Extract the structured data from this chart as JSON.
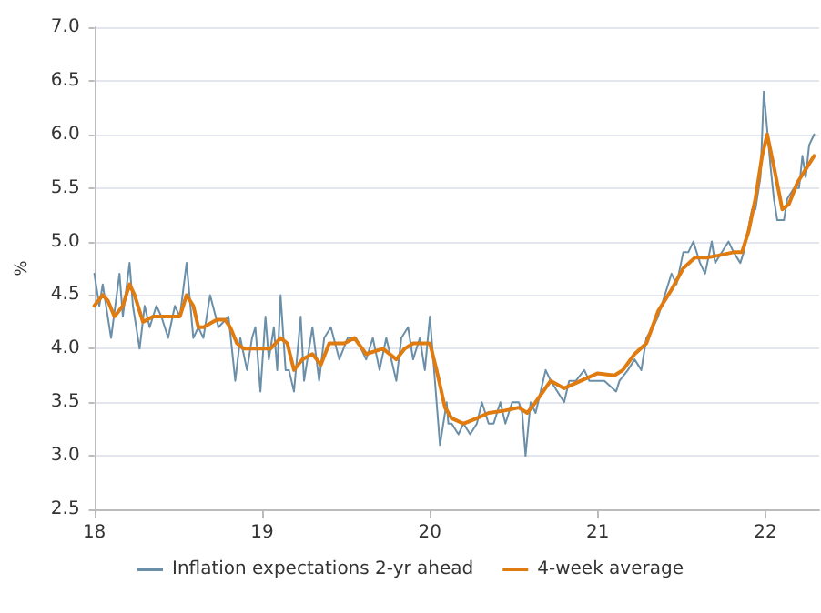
{
  "chart_data": {
    "type": "line",
    "ylabel": "%",
    "xlim": [
      18,
      22.32
    ],
    "xticks": [
      18,
      19,
      20,
      21,
      22
    ],
    "ylim": [
      2.5,
      7.0
    ],
    "yticks": [
      {
        "value": 2.5,
        "label": "2.5"
      },
      {
        "value": 3,
        "label": "3.0"
      },
      {
        "value": 3.5,
        "label": "3.5"
      },
      {
        "value": 4,
        "label": "4.0"
      },
      {
        "value": 4.5,
        "label": "4.5"
      },
      {
        "value": 5,
        "label": "5.0"
      },
      {
        "value": 5.5,
        "label": "5.5"
      },
      {
        "value": 6,
        "label": "6.0"
      },
      {
        "value": 6.5,
        "label": "6.5"
      },
      {
        "value": 7,
        "label": "7.0"
      }
    ],
    "grid": "y",
    "legend": "bottom",
    "marker": "none",
    "line_style": "solid",
    "series": [
      {
        "name": "Inflation expectations 2-yr ahead",
        "color": "#6b8fa8",
        "x": [
          18.0,
          18.03,
          18.05,
          18.1,
          18.15,
          18.17,
          18.21,
          18.23,
          18.27,
          18.3,
          18.33,
          18.37,
          18.4,
          18.44,
          18.48,
          18.51,
          18.55,
          18.59,
          18.62,
          18.65,
          18.69,
          18.74,
          18.8,
          18.84,
          18.87,
          18.91,
          18.94,
          18.96,
          18.99,
          19.02,
          19.04,
          19.07,
          19.09,
          19.11,
          19.14,
          19.16,
          19.19,
          19.23,
          19.25,
          19.28,
          19.3,
          19.34,
          19.37,
          19.41,
          19.46,
          19.51,
          19.56,
          19.62,
          19.66,
          19.7,
          19.74,
          19.8,
          19.83,
          19.87,
          19.9,
          19.94,
          19.97,
          20.0,
          20.06,
          20.1,
          20.11,
          20.13,
          20.17,
          20.2,
          20.24,
          20.28,
          20.31,
          20.35,
          20.38,
          20.42,
          20.45,
          20.49,
          20.53,
          20.55,
          20.57,
          20.6,
          20.63,
          20.66,
          20.69,
          20.72,
          20.76,
          20.8,
          20.83,
          20.87,
          20.92,
          20.95,
          21.0,
          21.04,
          21.11,
          21.13,
          21.18,
          21.22,
          21.26,
          21.29,
          21.33,
          21.36,
          21.4,
          21.44,
          21.47,
          21.51,
          21.54,
          21.57,
          21.61,
          21.64,
          21.68,
          21.7,
          21.74,
          21.78,
          21.81,
          21.85,
          21.87,
          21.92,
          21.94,
          21.97,
          21.99,
          22.03,
          22.05,
          22.07,
          22.11,
          22.13,
          22.17,
          22.2,
          22.22,
          22.24,
          22.26,
          22.29
        ],
        "values": [
          4.7,
          4.4,
          4.6,
          4.1,
          4.7,
          4.3,
          4.8,
          4.4,
          4.0,
          4.4,
          4.2,
          4.4,
          4.3,
          4.1,
          4.4,
          4.3,
          4.8,
          4.1,
          4.2,
          4.1,
          4.5,
          4.2,
          4.3,
          3.7,
          4.1,
          3.8,
          4.1,
          4.2,
          3.6,
          4.3,
          3.9,
          4.2,
          3.8,
          4.5,
          3.8,
          3.8,
          3.6,
          4.3,
          3.7,
          4.0,
          4.2,
          3.7,
          4.1,
          4.2,
          3.9,
          4.1,
          4.1,
          3.9,
          4.1,
          3.8,
          4.1,
          3.7,
          4.1,
          4.2,
          3.9,
          4.1,
          3.8,
          4.3,
          3.1,
          3.5,
          3.3,
          3.3,
          3.2,
          3.3,
          3.2,
          3.3,
          3.5,
          3.3,
          3.3,
          3.5,
          3.3,
          3.5,
          3.5,
          3.4,
          3.0,
          3.5,
          3.4,
          3.6,
          3.8,
          3.7,
          3.6,
          3.5,
          3.7,
          3.7,
          3.8,
          3.7,
          3.7,
          3.7,
          3.6,
          3.7,
          3.8,
          3.9,
          3.8,
          4.1,
          4.2,
          4.3,
          4.5,
          4.7,
          4.6,
          4.9,
          4.9,
          5.0,
          4.8,
          4.7,
          5.0,
          4.8,
          4.9,
          5.0,
          4.9,
          4.8,
          4.9,
          5.3,
          5.3,
          5.6,
          6.4,
          5.7,
          5.4,
          5.2,
          5.2,
          5.4,
          5.5,
          5.5,
          5.8,
          5.6,
          5.9,
          6.0
        ]
      },
      {
        "name": "4-week average",
        "color": "#e07b10",
        "x": [
          18.0,
          18.05,
          18.08,
          18.12,
          18.17,
          18.21,
          18.24,
          18.29,
          18.35,
          18.44,
          18.51,
          18.55,
          18.59,
          18.62,
          18.65,
          18.73,
          18.78,
          18.81,
          18.85,
          18.89,
          18.94,
          19.05,
          19.11,
          19.15,
          19.19,
          19.24,
          19.3,
          19.35,
          19.4,
          19.49,
          19.55,
          19.62,
          19.72,
          19.8,
          19.85,
          19.9,
          19.97,
          20.0,
          20.04,
          20.09,
          20.13,
          20.2,
          20.28,
          20.35,
          20.44,
          20.53,
          20.58,
          20.63,
          20.72,
          20.8,
          20.9,
          21.0,
          21.1,
          21.15,
          21.22,
          21.29,
          21.36,
          21.44,
          21.51,
          21.58,
          21.65,
          21.72,
          21.81,
          21.86,
          21.9,
          21.94,
          21.98,
          22.01,
          22.05,
          22.1,
          22.14,
          22.19,
          22.25,
          22.29
        ],
        "values": [
          4.4,
          4.5,
          4.45,
          4.3,
          4.4,
          4.6,
          4.5,
          4.25,
          4.3,
          4.3,
          4.3,
          4.5,
          4.4,
          4.2,
          4.2,
          4.27,
          4.27,
          4.2,
          4.05,
          4.0,
          4.0,
          4.0,
          4.1,
          4.05,
          3.8,
          3.9,
          3.95,
          3.85,
          4.05,
          4.05,
          4.1,
          3.95,
          4.0,
          3.9,
          4.0,
          4.05,
          4.05,
          4.05,
          3.8,
          3.45,
          3.35,
          3.3,
          3.35,
          3.4,
          3.42,
          3.45,
          3.4,
          3.5,
          3.7,
          3.63,
          3.7,
          3.77,
          3.75,
          3.8,
          3.95,
          4.05,
          4.35,
          4.55,
          4.75,
          4.85,
          4.85,
          4.87,
          4.9,
          4.9,
          5.1,
          5.4,
          5.8,
          6.0,
          5.7,
          5.3,
          5.35,
          5.55,
          5.7,
          5.8
        ]
      }
    ]
  }
}
